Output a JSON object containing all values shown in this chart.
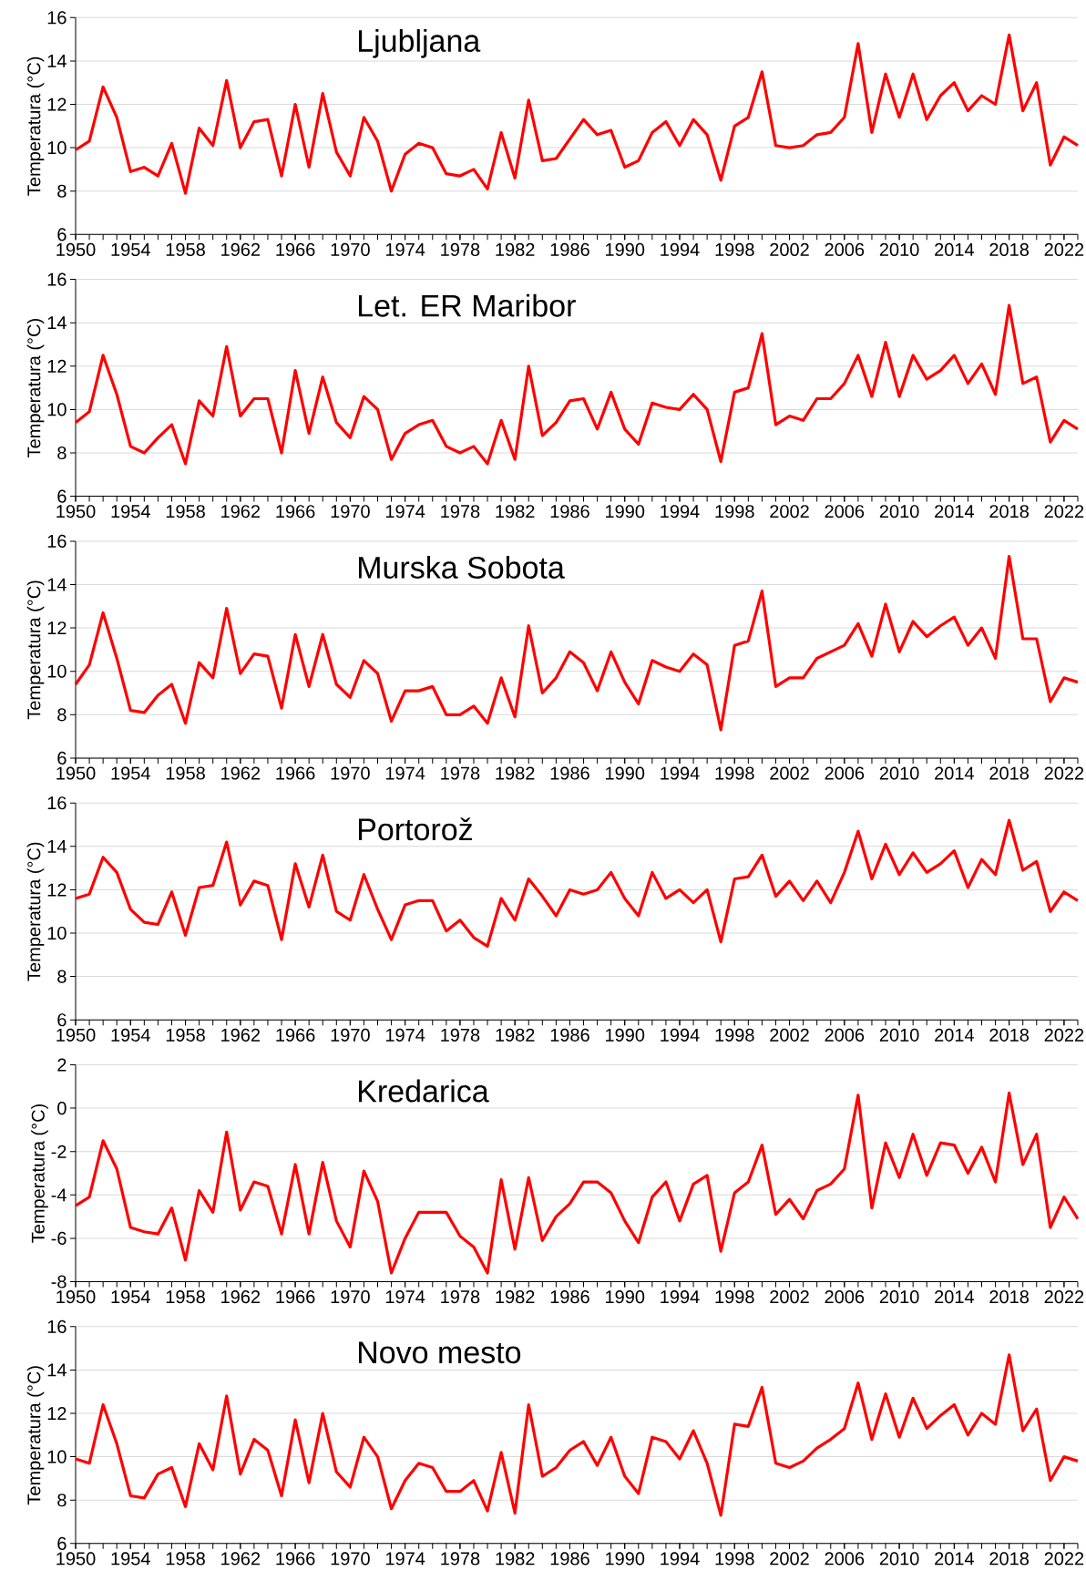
{
  "chart_data": [
    {
      "type": "line",
      "title": "Ljubljana",
      "ylabel": "Temperatura (°C)",
      "color": "#ff0000",
      "grid": "y",
      "xlim": [
        1950,
        2023
      ],
      "ylim": [
        6,
        16
      ],
      "xticks": [
        1950,
        1954,
        1958,
        1962,
        1966,
        1970,
        1974,
        1978,
        1982,
        1986,
        1990,
        1994,
        1998,
        2002,
        2006,
        2010,
        2014,
        2018,
        2022
      ],
      "yticks": [
        6,
        8,
        10,
        12,
        14,
        16
      ],
      "x": [
        1950,
        1951,
        1952,
        1953,
        1954,
        1955,
        1956,
        1957,
        1958,
        1959,
        1960,
        1961,
        1962,
        1963,
        1964,
        1965,
        1966,
        1967,
        1968,
        1969,
        1970,
        1971,
        1972,
        1973,
        1974,
        1975,
        1976,
        1977,
        1978,
        1979,
        1980,
        1981,
        1982,
        1983,
        1984,
        1985,
        1986,
        1987,
        1988,
        1989,
        1990,
        1991,
        1992,
        1993,
        1994,
        1995,
        1996,
        1997,
        1998,
        1999,
        2000,
        2001,
        2002,
        2003,
        2004,
        2005,
        2006,
        2007,
        2008,
        2009,
        2010,
        2011,
        2012,
        2013,
        2014,
        2015,
        2016,
        2017,
        2018,
        2019,
        2020,
        2021,
        2022,
        2023
      ],
      "values": [
        9.9,
        10.3,
        12.8,
        11.4,
        8.9,
        9.1,
        8.7,
        10.2,
        7.9,
        10.9,
        10.1,
        13.1,
        10.0,
        11.2,
        11.3,
        8.7,
        12.0,
        9.1,
        12.5,
        9.8,
        8.7,
        11.4,
        10.3,
        8.0,
        9.7,
        10.2,
        10.0,
        8.8,
        8.7,
        9.0,
        8.1,
        10.7,
        8.6,
        12.2,
        9.4,
        9.5,
        10.4,
        11.3,
        10.6,
        10.8,
        9.1,
        9.4,
        10.7,
        11.2,
        10.1,
        11.3,
        10.6,
        8.5,
        11.0,
        11.4,
        13.5,
        10.1,
        10.0,
        10.1,
        10.6,
        10.7,
        11.4,
        14.8,
        10.7,
        13.4,
        11.4,
        13.4,
        11.3,
        12.4,
        13.0,
        11.7,
        12.4,
        12.0,
        15.2,
        11.7,
        13.0,
        9.2,
        10.5,
        10.1
      ]
    },
    {
      "type": "line",
      "title": "Let. ER Maribor",
      "ylabel": "Temperatura (°C)",
      "color": "#ff0000",
      "grid": "y",
      "xlim": [
        1950,
        2023
      ],
      "ylim": [
        6,
        16
      ],
      "xticks": [
        1950,
        1954,
        1958,
        1962,
        1966,
        1970,
        1974,
        1978,
        1982,
        1986,
        1990,
        1994,
        1998,
        2002,
        2006,
        2010,
        2014,
        2018,
        2022
      ],
      "yticks": [
        6,
        8,
        10,
        12,
        14,
        16
      ],
      "x": [
        1950,
        1951,
        1952,
        1953,
        1954,
        1955,
        1956,
        1957,
        1958,
        1959,
        1960,
        1961,
        1962,
        1963,
        1964,
        1965,
        1966,
        1967,
        1968,
        1969,
        1970,
        1971,
        1972,
        1973,
        1974,
        1975,
        1976,
        1977,
        1978,
        1979,
        1980,
        1981,
        1982,
        1983,
        1984,
        1985,
        1986,
        1987,
        1988,
        1989,
        1990,
        1991,
        1992,
        1993,
        1994,
        1995,
        1996,
        1997,
        1998,
        1999,
        2000,
        2001,
        2002,
        2003,
        2004,
        2005,
        2006,
        2007,
        2008,
        2009,
        2010,
        2011,
        2012,
        2013,
        2014,
        2015,
        2016,
        2017,
        2018,
        2019,
        2020,
        2021,
        2022,
        2023
      ],
      "values": [
        9.4,
        9.9,
        12.5,
        10.7,
        8.3,
        8.0,
        8.7,
        9.3,
        7.5,
        10.4,
        9.7,
        12.9,
        9.7,
        10.5,
        10.5,
        8.0,
        11.8,
        8.9,
        11.5,
        9.4,
        8.7,
        10.6,
        10.0,
        7.7,
        8.9,
        9.3,
        9.5,
        8.3,
        8.0,
        8.3,
        7.5,
        9.5,
        7.7,
        12.0,
        8.8,
        9.4,
        10.4,
        10.5,
        9.1,
        10.8,
        9.1,
        8.4,
        10.3,
        10.1,
        10.0,
        10.7,
        10.0,
        7.6,
        10.8,
        11.0,
        13.5,
        9.3,
        9.7,
        9.5,
        10.5,
        10.5,
        11.2,
        12.5,
        10.6,
        13.1,
        10.6,
        12.5,
        11.4,
        11.8,
        12.5,
        11.2,
        12.1,
        10.7,
        14.8,
        11.2,
        11.5,
        8.5,
        9.5,
        9.1
      ]
    },
    {
      "type": "line",
      "title": "Murska Sobota",
      "ylabel": "Temperatura (°C)",
      "color": "#ff0000",
      "grid": "y",
      "xlim": [
        1950,
        2023
      ],
      "ylim": [
        6,
        16
      ],
      "xticks": [
        1950,
        1954,
        1958,
        1962,
        1966,
        1970,
        1974,
        1978,
        1982,
        1986,
        1990,
        1994,
        1998,
        2002,
        2006,
        2010,
        2014,
        2018,
        2022
      ],
      "yticks": [
        6,
        8,
        10,
        12,
        14,
        16
      ],
      "x": [
        1950,
        1951,
        1952,
        1953,
        1954,
        1955,
        1956,
        1957,
        1958,
        1959,
        1960,
        1961,
        1962,
        1963,
        1964,
        1965,
        1966,
        1967,
        1968,
        1969,
        1970,
        1971,
        1972,
        1973,
        1974,
        1975,
        1976,
        1977,
        1978,
        1979,
        1980,
        1981,
        1982,
        1983,
        1984,
        1985,
        1986,
        1987,
        1988,
        1989,
        1990,
        1991,
        1992,
        1993,
        1994,
        1995,
        1996,
        1997,
        1998,
        1999,
        2000,
        2001,
        2002,
        2003,
        2004,
        2005,
        2006,
        2007,
        2008,
        2009,
        2010,
        2011,
        2012,
        2013,
        2014,
        2015,
        2016,
        2017,
        2018,
        2019,
        2020,
        2021,
        2022,
        2023
      ],
      "values": [
        9.4,
        10.3,
        12.7,
        10.6,
        8.2,
        8.1,
        8.9,
        9.4,
        7.6,
        10.4,
        9.7,
        12.9,
        9.9,
        10.8,
        10.7,
        8.3,
        11.7,
        9.3,
        11.7,
        9.4,
        8.8,
        10.5,
        9.9,
        7.7,
        9.1,
        9.1,
        9.3,
        8.0,
        8.0,
        8.4,
        7.6,
        9.7,
        7.9,
        12.1,
        9.0,
        9.7,
        10.9,
        10.4,
        9.1,
        10.9,
        9.5,
        8.5,
        10.5,
        10.2,
        10.0,
        10.8,
        10.3,
        7.3,
        11.2,
        11.4,
        13.7,
        9.3,
        9.7,
        9.7,
        10.6,
        10.9,
        11.2,
        12.2,
        10.7,
        13.1,
        10.9,
        12.3,
        11.6,
        12.1,
        12.5,
        11.2,
        12.0,
        10.6,
        15.3,
        11.5,
        11.5,
        8.6,
        9.7,
        9.5
      ]
    },
    {
      "type": "line",
      "title": "Portorož",
      "ylabel": "Temperatura (°C)",
      "color": "#ff0000",
      "grid": "y",
      "xlim": [
        1950,
        2023
      ],
      "ylim": [
        6,
        16
      ],
      "xticks": [
        1950,
        1954,
        1958,
        1962,
        1966,
        1970,
        1974,
        1978,
        1982,
        1986,
        1990,
        1994,
        1998,
        2002,
        2006,
        2010,
        2014,
        2018,
        2022
      ],
      "yticks": [
        6,
        8,
        10,
        12,
        14,
        16
      ],
      "x": [
        1950,
        1951,
        1952,
        1953,
        1954,
        1955,
        1956,
        1957,
        1958,
        1959,
        1960,
        1961,
        1962,
        1963,
        1964,
        1965,
        1966,
        1967,
        1968,
        1969,
        1970,
        1971,
        1972,
        1973,
        1974,
        1975,
        1976,
        1977,
        1978,
        1979,
        1980,
        1981,
        1982,
        1983,
        1984,
        1985,
        1986,
        1987,
        1988,
        1989,
        1990,
        1991,
        1992,
        1993,
        1994,
        1995,
        1996,
        1997,
        1998,
        1999,
        2000,
        2001,
        2002,
        2003,
        2004,
        2005,
        2006,
        2007,
        2008,
        2009,
        2010,
        2011,
        2012,
        2013,
        2014,
        2015,
        2016,
        2017,
        2018,
        2019,
        2020,
        2021,
        2022,
        2023
      ],
      "values": [
        11.6,
        11.8,
        13.5,
        12.8,
        11.1,
        10.5,
        10.4,
        11.9,
        9.9,
        12.1,
        12.2,
        14.2,
        11.3,
        12.4,
        12.2,
        9.7,
        13.2,
        11.2,
        13.6,
        11.0,
        10.6,
        12.7,
        11.1,
        9.7,
        11.3,
        11.5,
        11.5,
        10.1,
        10.6,
        9.8,
        9.4,
        11.6,
        10.6,
        12.5,
        11.7,
        10.8,
        12.0,
        11.8,
        12.0,
        12.8,
        11.6,
        10.8,
        12.8,
        11.6,
        12.0,
        11.4,
        12.0,
        9.6,
        12.5,
        12.6,
        13.6,
        11.7,
        12.4,
        11.5,
        12.4,
        11.4,
        12.8,
        14.7,
        12.5,
        14.1,
        12.7,
        13.7,
        12.8,
        13.2,
        13.8,
        12.1,
        13.4,
        12.7,
        15.2,
        12.9,
        13.3,
        11.0,
        11.9,
        11.5
      ]
    },
    {
      "type": "line",
      "title": "Kredarica",
      "ylabel": "Temperatura (°C)",
      "color": "#ff0000",
      "grid": "y",
      "xlim": [
        1950,
        2023
      ],
      "ylim": [
        -8,
        2
      ],
      "xticks": [
        1950,
        1954,
        1958,
        1962,
        1966,
        1970,
        1974,
        1978,
        1982,
        1986,
        1990,
        1994,
        1998,
        2002,
        2006,
        2010,
        2014,
        2018,
        2022
      ],
      "yticks": [
        -8,
        -6,
        -4,
        -2,
        0,
        2
      ],
      "x": [
        1950,
        1951,
        1952,
        1953,
        1954,
        1955,
        1956,
        1957,
        1958,
        1959,
        1960,
        1961,
        1962,
        1963,
        1964,
        1965,
        1966,
        1967,
        1968,
        1969,
        1970,
        1971,
        1972,
        1973,
        1974,
        1975,
        1976,
        1977,
        1978,
        1979,
        1980,
        1981,
        1982,
        1983,
        1984,
        1985,
        1986,
        1987,
        1988,
        1989,
        1990,
        1991,
        1992,
        1993,
        1994,
        1995,
        1996,
        1997,
        1998,
        1999,
        2000,
        2001,
        2002,
        2003,
        2004,
        2005,
        2006,
        2007,
        2008,
        2009,
        2010,
        2011,
        2012,
        2013,
        2014,
        2015,
        2016,
        2017,
        2018,
        2019,
        2020,
        2021,
        2022,
        2023
      ],
      "values": [
        -4.5,
        -4.1,
        -1.5,
        -2.8,
        -5.5,
        -5.7,
        -5.8,
        -4.6,
        -7.0,
        -3.8,
        -4.8,
        -1.1,
        -4.7,
        -3.4,
        -3.6,
        -5.8,
        -2.6,
        -5.8,
        -2.5,
        -5.2,
        -6.4,
        -2.9,
        -4.3,
        -7.6,
        -6.0,
        -4.8,
        -4.8,
        -4.8,
        -5.9,
        -6.4,
        -7.6,
        -3.3,
        -6.5,
        -3.2,
        -6.1,
        -5.0,
        -4.4,
        -3.4,
        -3.4,
        -3.9,
        -5.2,
        -6.2,
        -4.1,
        -3.4,
        -5.2,
        -3.5,
        -3.1,
        -6.6,
        -3.9,
        -3.4,
        -1.7,
        -4.9,
        -4.2,
        -5.1,
        -3.8,
        -3.5,
        -2.8,
        0.6,
        -4.6,
        -1.6,
        -3.2,
        -1.2,
        -3.1,
        -1.6,
        -1.7,
        -3.0,
        -1.8,
        -3.4,
        0.7,
        -2.6,
        -1.2,
        -5.5,
        -4.1,
        -5.1
      ]
    },
    {
      "type": "line",
      "title": "Novo mesto",
      "ylabel": "Temperatura (°C)",
      "color": "#ff0000",
      "grid": "y",
      "xlim": [
        1950,
        2023
      ],
      "ylim": [
        6,
        16
      ],
      "xticks": [
        1950,
        1954,
        1958,
        1962,
        1966,
        1970,
        1974,
        1978,
        1982,
        1986,
        1990,
        1994,
        1998,
        2002,
        2006,
        2010,
        2014,
        2018,
        2022
      ],
      "yticks": [
        6,
        8,
        10,
        12,
        14,
        16
      ],
      "x": [
        1950,
        1951,
        1952,
        1953,
        1954,
        1955,
        1956,
        1957,
        1958,
        1959,
        1960,
        1961,
        1962,
        1963,
        1964,
        1965,
        1966,
        1967,
        1968,
        1969,
        1970,
        1971,
        1972,
        1973,
        1974,
        1975,
        1976,
        1977,
        1978,
        1979,
        1980,
        1981,
        1982,
        1983,
        1984,
        1985,
        1986,
        1987,
        1988,
        1989,
        1990,
        1991,
        1992,
        1993,
        1994,
        1995,
        1996,
        1997,
        1998,
        1999,
        2000,
        2001,
        2002,
        2003,
        2004,
        2005,
        2006,
        2007,
        2008,
        2009,
        2010,
        2011,
        2012,
        2013,
        2014,
        2015,
        2016,
        2017,
        2018,
        2019,
        2020,
        2021,
        2022,
        2023
      ],
      "values": [
        9.9,
        9.7,
        12.4,
        10.6,
        8.2,
        8.1,
        9.2,
        9.5,
        7.7,
        10.6,
        9.4,
        12.8,
        9.2,
        10.8,
        10.3,
        8.2,
        11.7,
        8.8,
        12.0,
        9.3,
        8.6,
        10.9,
        10.0,
        7.6,
        8.9,
        9.7,
        9.5,
        8.4,
        8.4,
        8.9,
        7.5,
        10.2,
        7.4,
        12.4,
        9.1,
        9.5,
        10.3,
        10.7,
        9.6,
        10.9,
        9.1,
        8.3,
        10.9,
        10.7,
        9.9,
        11.2,
        9.7,
        7.3,
        11.5,
        11.4,
        13.2,
        9.7,
        9.5,
        9.8,
        10.4,
        10.8,
        11.3,
        13.4,
        10.8,
        12.9,
        10.9,
        12.7,
        11.3,
        11.9,
        12.4,
        11.0,
        12.0,
        11.5,
        14.7,
        11.2,
        12.2,
        8.9,
        10.0,
        9.8
      ]
    }
  ]
}
